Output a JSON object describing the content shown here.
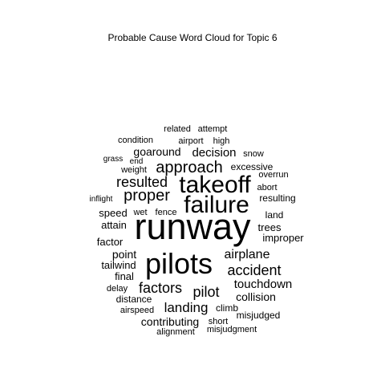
{
  "chart_data": {
    "type": "wordcloud",
    "title": "Probable Cause Word Cloud for Topic 6",
    "words": [
      {
        "text": "runway",
        "weight": 45
      },
      {
        "text": "pilots",
        "weight": 36
      },
      {
        "text": "failure",
        "weight": 30
      },
      {
        "text": "takeoff",
        "weight": 30
      },
      {
        "text": "approach",
        "weight": 20
      },
      {
        "text": "proper",
        "weight": 20
      },
      {
        "text": "accident",
        "weight": 18
      },
      {
        "text": "resulted",
        "weight": 18
      },
      {
        "text": "factors",
        "weight": 18
      },
      {
        "text": "pilot",
        "weight": 18
      },
      {
        "text": "landing",
        "weight": 17
      },
      {
        "text": "airplane",
        "weight": 16
      },
      {
        "text": "touchdown",
        "weight": 15
      },
      {
        "text": "decision",
        "weight": 15
      },
      {
        "text": "goaround",
        "weight": 14
      },
      {
        "text": "collision",
        "weight": 14
      },
      {
        "text": "point",
        "weight": 14
      },
      {
        "text": "contributing",
        "weight": 14
      },
      {
        "text": "attain",
        "weight": 13
      },
      {
        "text": "trees",
        "weight": 13
      },
      {
        "text": "factor",
        "weight": 13
      },
      {
        "text": "improper",
        "weight": 13
      },
      {
        "text": "speed",
        "weight": 13
      },
      {
        "text": "tailwind",
        "weight": 13
      },
      {
        "text": "final",
        "weight": 13
      },
      {
        "text": "excessive",
        "weight": 12
      },
      {
        "text": "resulting",
        "weight": 12
      },
      {
        "text": "land",
        "weight": 12
      },
      {
        "text": "distance",
        "weight": 12
      },
      {
        "text": "climb",
        "weight": 12
      },
      {
        "text": "misjudged",
        "weight": 12
      },
      {
        "text": "airport",
        "weight": 11
      },
      {
        "text": "high",
        "weight": 11
      },
      {
        "text": "related",
        "weight": 11
      },
      {
        "text": "attempt",
        "weight": 11
      },
      {
        "text": "condition",
        "weight": 11
      },
      {
        "text": "snow",
        "weight": 11
      },
      {
        "text": "weight",
        "weight": 11
      },
      {
        "text": "overrun",
        "weight": 11
      },
      {
        "text": "abort",
        "weight": 11
      },
      {
        "text": "wet",
        "weight": 11
      },
      {
        "text": "fence",
        "weight": 11
      },
      {
        "text": "delay",
        "weight": 11
      },
      {
        "text": "airspeed",
        "weight": 11
      },
      {
        "text": "short",
        "weight": 11
      },
      {
        "text": "alignment",
        "weight": 11
      },
      {
        "text": "misjudgment",
        "weight": 11
      },
      {
        "text": "grass",
        "weight": 10
      },
      {
        "text": "end",
        "weight": 10
      },
      {
        "text": "inflight",
        "weight": 10
      }
    ]
  }
}
